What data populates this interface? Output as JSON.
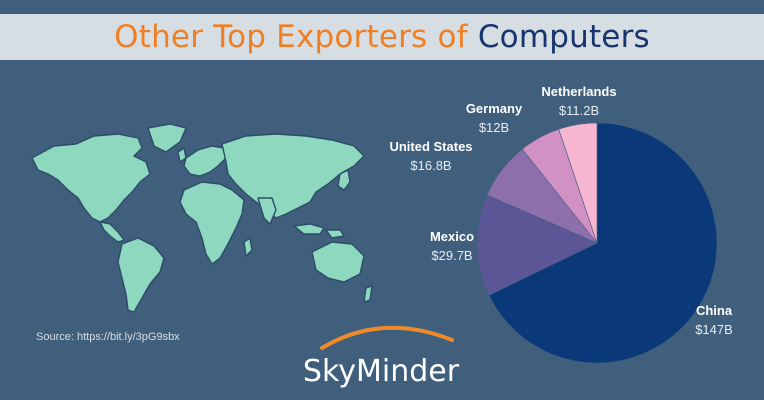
{
  "title": {
    "part1": "Other Top Exporters of",
    "part2": "Computers"
  },
  "source": "Source: https://bit.ly/3pG9sbx",
  "brand": "SkyMinder",
  "icons": {
    "map": "world-map",
    "logo_arc": "orange-arc"
  },
  "colors": {
    "title_orange": "#ef7f25",
    "title_navy": "#16346e",
    "background": "#3f5f7d",
    "map_land": "#8ed8c0"
  },
  "chart_data": {
    "type": "pie",
    "title": "",
    "categories": [
      "China",
      "Mexico",
      "United States",
      "Germany",
      "Netherlands"
    ],
    "values": [
      147,
      29.7,
      16.8,
      12,
      11.2
    ],
    "value_labels": [
      "$147B",
      "$29.7B",
      "$16.8B",
      "$12B",
      "$11.2B"
    ],
    "colors": [
      "#0b3878",
      "#5c5697",
      "#8d6fac",
      "#d191c4",
      "#f6b6d0"
    ]
  }
}
